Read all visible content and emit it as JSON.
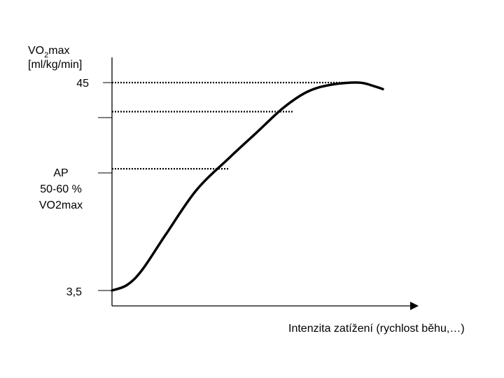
{
  "chart_data": {
    "type": "line",
    "title": "",
    "ylabel_main": "VO",
    "ylabel_sub": "2",
    "ylabel_rest": "max",
    "ylabel_unit": "[ml/kg/min]",
    "xlabel": "Intenzita zatížení (rychlost běhu,…)",
    "ylim": [
      3.5,
      45
    ],
    "y_tick_labels": {
      "max": "45",
      "ap_line1": "AP",
      "ap_line2": "50-60 %",
      "ap_line3": "VO2max",
      "min": "3,5"
    },
    "reference_lines": [
      {
        "y": 45,
        "x_end": 0.82,
        "label": "45"
      },
      {
        "y": 39.2,
        "x_end": 0.6,
        "label": ""
      },
      {
        "y": 27.8,
        "x_end": 0.39,
        "label": "AP 50-60 % VO2max"
      }
    ],
    "series": [
      {
        "x": [
          0.0,
          0.05,
          0.1,
          0.18,
          0.28,
          0.39,
          0.48,
          0.57,
          0.65,
          0.73,
          0.82,
          0.87,
          0.9
        ],
        "y": [
          3.5,
          4.6,
          7.6,
          14.8,
          23.5,
          30.0,
          35.0,
          40.0,
          43.2,
          44.6,
          45.0,
          44.3,
          43.7
        ]
      }
    ]
  }
}
